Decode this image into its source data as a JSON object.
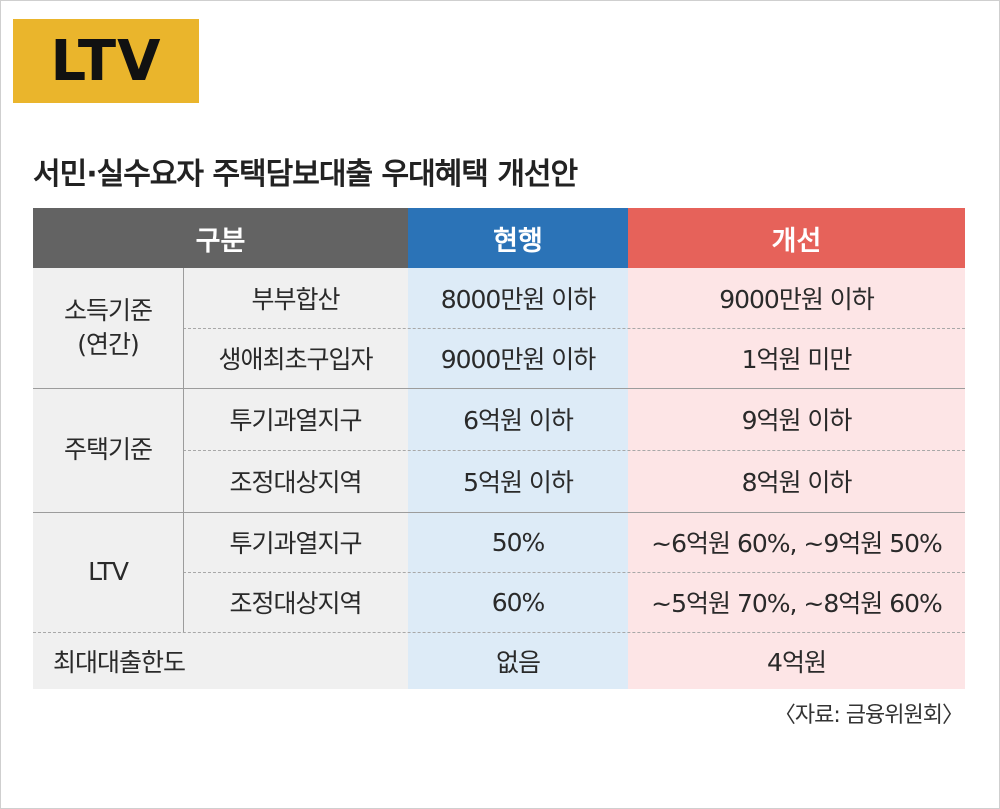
{
  "badge": "LTV",
  "title": "서민·실수요자 주택담보대출 우대혜택 개선안",
  "headers": {
    "category": "구분",
    "current": "현행",
    "improved": "개선"
  },
  "groups": [
    {
      "label_line1": "소득기준",
      "label_line2": "(연간)",
      "rows": [
        {
          "sub": "부부합산",
          "current": "8000만원 이하",
          "improved": "9000만원 이하"
        },
        {
          "sub": "생애최초구입자",
          "current": "9000만원 이하",
          "improved": "1억원 미만"
        }
      ]
    },
    {
      "label_line1": "주택기준",
      "rows": [
        {
          "sub": "투기과열지구",
          "current": "6억원 이하",
          "improved": "9억원 이하"
        },
        {
          "sub": "조정대상지역",
          "current": "5억원 이하",
          "improved": "8억원 이하"
        }
      ]
    },
    {
      "label_line1": "LTV",
      "rows": [
        {
          "sub": "투기과열지구",
          "current": "50%",
          "improved": "~6억원 60%, ~9억원 50%"
        },
        {
          "sub": "조정대상지역",
          "current": "60%",
          "improved": "~5억원 70%, ~8억원 60%"
        }
      ]
    }
  ],
  "max_loan": {
    "label": "최대대출한도",
    "current": "없음",
    "improved": "4억원"
  },
  "source": "〈자료: 금융위원회〉",
  "colors": {
    "badge": "#eab52c",
    "header_category": "#636363",
    "header_current": "#2b73b7",
    "header_improved": "#e6625a",
    "current_bg": "#ddebf7",
    "improved_bg": "#fde5e6"
  }
}
